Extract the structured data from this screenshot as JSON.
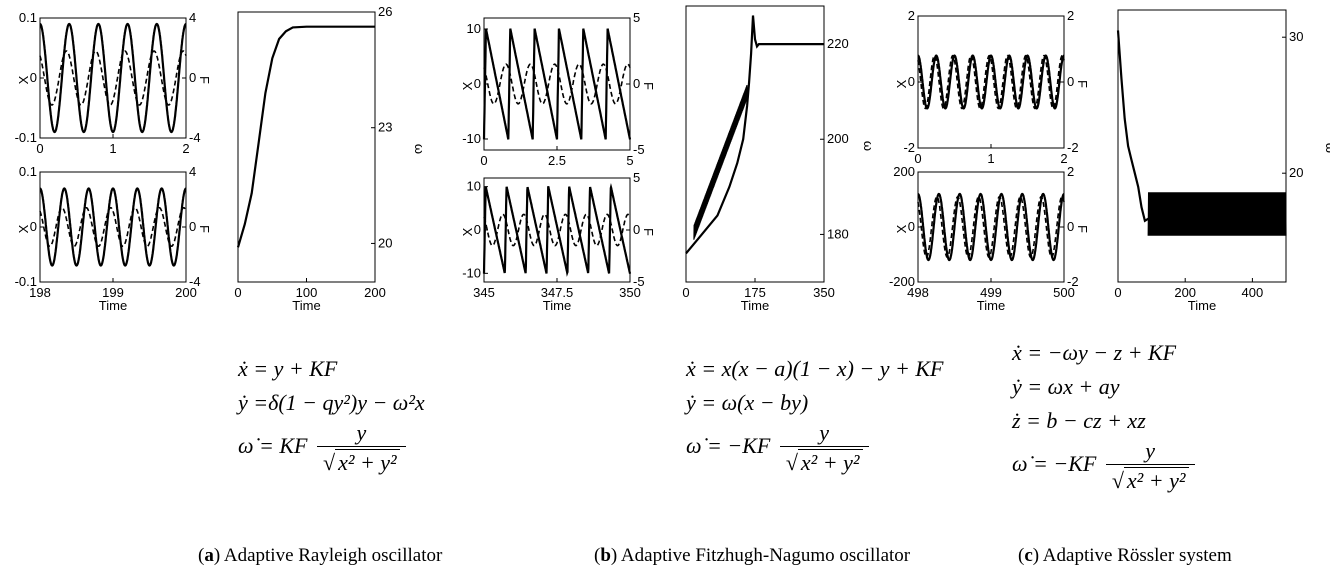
{
  "chart_data": [
    {
      "type": "line",
      "panel": "a-top-left",
      "xlabel": "",
      "ylabel": "X",
      "ylabel_right": "F",
      "xlim": [
        0,
        2
      ],
      "ylim": [
        -0.1,
        0.1
      ],
      "ylim_right": [
        -4,
        4
      ],
      "xticks": [
        "0",
        "1",
        "2"
      ],
      "yticks": [
        "0.1",
        "0",
        "-0.1"
      ],
      "yticks_right": [
        "4",
        "0",
        "-4"
      ],
      "series": [
        {
          "style": "solid",
          "axis": "left",
          "amplitude": 0.09,
          "cycles": 5
        },
        {
          "style": "dashed",
          "axis": "right",
          "amplitude": 1.8,
          "cycles": 5
        }
      ]
    },
    {
      "type": "line",
      "panel": "a-bottom-left",
      "xlabel": "Time",
      "ylabel": "X",
      "ylabel_right": "F",
      "xlim": [
        198,
        200
      ],
      "ylim": [
        -0.1,
        0.1
      ],
      "ylim_right": [
        -4,
        4
      ],
      "xticks": [
        "198",
        "199",
        "200"
      ],
      "yticks": [
        "0.1",
        "0",
        "-0.1"
      ],
      "yticks_right": [
        "4",
        "0",
        "-4"
      ],
      "series": [
        {
          "style": "solid",
          "axis": "left",
          "amplitude": 0.07,
          "cycles": 6
        },
        {
          "style": "dashed",
          "axis": "right",
          "amplitude": 1.4,
          "cycles": 6
        }
      ]
    },
    {
      "type": "line",
      "panel": "a-right",
      "xlabel": "Time",
      "ylabel": "",
      "ylabel_right": "ω",
      "xlim": [
        0,
        200
      ],
      "ylim": [
        19,
        26
      ],
      "xticks": [
        "0",
        "100",
        "200"
      ],
      "yticks_right": [
        "26",
        "23",
        "20"
      ],
      "x": [
        0,
        10,
        20,
        30,
        40,
        50,
        60,
        70,
        80,
        100,
        120,
        150,
        200
      ],
      "y": [
        19.9,
        20.5,
        21.3,
        22.6,
        23.9,
        24.8,
        25.3,
        25.5,
        25.6,
        25.62,
        25.62,
        25.62,
        25.62
      ]
    },
    {
      "type": "line",
      "panel": "b-top-left",
      "xlabel": "",
      "ylabel": "X",
      "ylabel_right": "F",
      "xlim": [
        0,
        5
      ],
      "ylim": [
        -12,
        12
      ],
      "ylim_right": [
        -5,
        5
      ],
      "xticks": [
        "0",
        "2.5",
        "5"
      ],
      "yticks": [
        "10",
        "0",
        "-10"
      ],
      "yticks_right": [
        "5",
        "0",
        "-5"
      ],
      "series": [
        {
          "style": "solid",
          "axis": "left",
          "shape": "relaxation",
          "cycles": 6
        },
        {
          "style": "dashed",
          "axis": "right",
          "amplitude": 1.5,
          "cycles": 6
        }
      ]
    },
    {
      "type": "line",
      "panel": "b-bottom-left",
      "xlabel": "Time",
      "ylabel": "X",
      "ylabel_right": "F",
      "xlim": [
        345,
        350
      ],
      "ylim": [
        -12,
        12
      ],
      "ylim_right": [
        -5,
        5
      ],
      "xticks": [
        "345",
        "347.5",
        "350"
      ],
      "yticks": [
        "10",
        "0",
        "-10"
      ],
      "yticks_right": [
        "5",
        "0",
        "-5"
      ],
      "series": [
        {
          "style": "solid",
          "axis": "left",
          "shape": "relaxation",
          "cycles": 7
        },
        {
          "style": "dashed",
          "axis": "right",
          "amplitude": 1.5,
          "cycles": 7
        }
      ]
    },
    {
      "type": "line",
      "panel": "b-right",
      "xlabel": "Time",
      "ylabel": "",
      "ylabel_right": "ω",
      "xlim": [
        0,
        350
      ],
      "ylim": [
        170,
        228
      ],
      "xticks": [
        "0",
        "175",
        "350"
      ],
      "yticks_right": [
        "220",
        "200",
        "180"
      ],
      "x": [
        0,
        40,
        80,
        110,
        130,
        145,
        155,
        160,
        165,
        170,
        175,
        180,
        185,
        190,
        200,
        250,
        300,
        350
      ],
      "y": [
        176,
        180,
        184,
        190,
        195,
        200,
        207,
        212,
        218,
        226,
        221,
        219.5,
        220,
        220,
        220,
        220,
        220,
        220
      ]
    },
    {
      "type": "line",
      "panel": "c-top-left",
      "xlabel": "",
      "ylabel": "X",
      "ylabel_right": "F",
      "xlim": [
        0,
        2
      ],
      "ylim": [
        -2,
        2
      ],
      "ylim_right": [
        -2,
        2
      ],
      "xticks": [
        "0",
        "1",
        "2"
      ],
      "yticks": [
        "2",
        "0",
        "-2"
      ],
      "yticks_right": [
        "2",
        "0",
        "-2"
      ],
      "series": [
        {
          "style": "solid",
          "axis": "left",
          "amplitude": 0.8,
          "cycles": 8
        },
        {
          "style": "dashed",
          "axis": "right",
          "amplitude": 0.8,
          "cycles": 8
        }
      ]
    },
    {
      "type": "line",
      "panel": "c-bottom-left",
      "xlabel": "Time",
      "ylabel": "X",
      "ylabel_right": "F",
      "xlim": [
        498,
        500
      ],
      "ylim": [
        -200,
        200
      ],
      "ylim_right": [
        -2,
        2
      ],
      "xticks": [
        "498",
        "499",
        "500"
      ],
      "yticks": [
        "200",
        "0",
        "-200"
      ],
      "yticks_right": [
        "2",
        "0",
        "-2"
      ],
      "series": [
        {
          "style": "solid",
          "axis": "left",
          "amplitude": 120,
          "cycles": 7
        },
        {
          "style": "dashed",
          "axis": "right",
          "amplitude": 1.1,
          "cycles": 7
        }
      ]
    },
    {
      "type": "line",
      "panel": "c-right",
      "xlabel": "Time",
      "ylabel": "",
      "ylabel_right": "ω",
      "xlim": [
        0,
        500
      ],
      "ylim": [
        12,
        32
      ],
      "xticks": [
        "0",
        "200",
        "400"
      ],
      "yticks_right": [
        "30",
        "20"
      ],
      "x": [
        0,
        10,
        20,
        30,
        40,
        50,
        60,
        70,
        80,
        100,
        150,
        200,
        300,
        400,
        500
      ],
      "y": [
        30.5,
        27,
        24,
        22,
        21,
        20,
        19,
        17.5,
        16.5,
        16.8,
        17,
        17,
        17,
        17,
        17
      ]
    }
  ],
  "equations": {
    "a": [
      "ẋ = y + KF",
      "ẏ =δ(1 − qy²)y − ω²x",
      "ω̇ = KF",
      "y",
      "x² + y²"
    ],
    "b": [
      "ẋ = x(x − a)(1 − x) − y + KF",
      "ẏ = ω(x − by)",
      "ω̇ = −KF",
      "y",
      "x² + y²"
    ],
    "c": [
      "ẋ = −ωy − z + KF",
      "ẏ = ωx + ay",
      "ż = b − cz + xz",
      "ω̇ = −KF",
      "y",
      "x² + y²"
    ]
  },
  "captions": {
    "a": {
      "letter": "a",
      "text": " Adaptive Rayleigh oscillator"
    },
    "b": {
      "letter": "b",
      "text": " Adaptive Fitzhugh-Nagumo oscillator"
    },
    "c": {
      "letter": "c",
      "text": " Adaptive Rössler system"
    }
  }
}
